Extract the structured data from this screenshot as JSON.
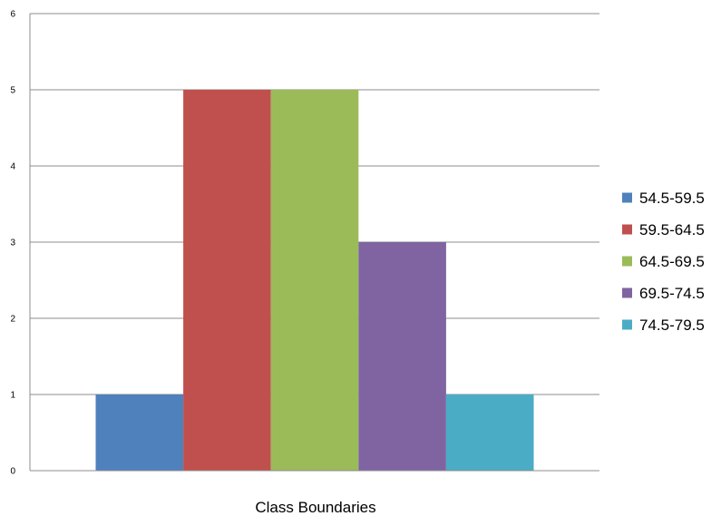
{
  "chart_data": {
    "type": "bar",
    "title": "",
    "xlabel": "Class Boundaries",
    "ylabel": "",
    "ylim": [
      0,
      6
    ],
    "yticks": [
      0,
      1,
      2,
      3,
      4,
      5,
      6
    ],
    "grid": true,
    "legend_position": "right",
    "series": [
      {
        "name": "54.5-59.5",
        "values": [
          1
        ],
        "color": "#4f81bd"
      },
      {
        "name": "59.5-64.5",
        "values": [
          5
        ],
        "color": "#c0504d"
      },
      {
        "name": "64.5-69.5",
        "values": [
          5
        ],
        "color": "#9bbb59"
      },
      {
        "name": "69.5-74.5",
        "values": [
          3
        ],
        "color": "#8064a2"
      },
      {
        "name": "74.5-79.5",
        "values": [
          1
        ],
        "color": "#4bacc6"
      }
    ]
  }
}
